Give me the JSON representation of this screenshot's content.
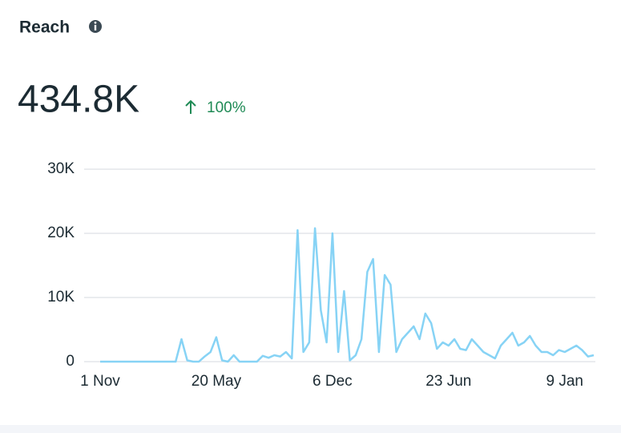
{
  "header": {
    "title": "Reach",
    "value": "434.8K",
    "change": "100%"
  },
  "chart_data": {
    "type": "line",
    "categories": [
      "1 Nov",
      null,
      null,
      null,
      null,
      null,
      null,
      null,
      null,
      null,
      null,
      null,
      null,
      null,
      null,
      null,
      null,
      null,
      null,
      null,
      "20 May",
      null,
      null,
      null,
      null,
      null,
      null,
      null,
      null,
      null,
      null,
      null,
      null,
      null,
      null,
      null,
      null,
      null,
      null,
      null,
      "6 Dec",
      null,
      null,
      null,
      null,
      null,
      null,
      null,
      null,
      null,
      null,
      null,
      null,
      null,
      null,
      null,
      null,
      null,
      null,
      null,
      "23 Jun",
      null,
      null,
      null,
      null,
      null,
      null,
      null,
      null,
      null,
      null,
      null,
      null,
      null,
      null,
      null,
      null,
      null,
      null,
      null,
      "9 Jan",
      null,
      null,
      null,
      null,
      null
    ],
    "series": [
      {
        "name": "Reach",
        "color": "#87d3f5",
        "values": [
          0,
          0,
          0,
          0,
          0,
          0,
          0,
          0,
          0,
          0,
          0,
          0,
          0,
          0,
          3500,
          200,
          0,
          0,
          800,
          1500,
          3800,
          200,
          0,
          1000,
          0,
          0,
          0,
          0,
          900,
          600,
          1000,
          800,
          1500,
          500,
          20500,
          1500,
          3000,
          20800,
          8000,
          3000,
          20000,
          1500,
          11000,
          200,
          1000,
          3500,
          14000,
          16000,
          1500,
          13500,
          12000,
          1500,
          3500,
          4500,
          5500,
          3500,
          7500,
          6000,
          2000,
          3000,
          2500,
          3500,
          2000,
          1800,
          3500,
          2500,
          1500,
          1000,
          500,
          2500,
          3500,
          4500,
          2500,
          3000,
          4000,
          2500,
          1500,
          1500,
          1000,
          1800,
          1500,
          2000,
          2500,
          1800,
          800,
          1000
        ]
      }
    ],
    "ylim": [
      0,
      30000
    ],
    "yticks": [
      0,
      {
        "value": 10000,
        "label": "10K"
      },
      {
        "value": 20000,
        "label": "20K"
      },
      {
        "value": 30000,
        "label": "30K"
      }
    ],
    "grid": true
  }
}
